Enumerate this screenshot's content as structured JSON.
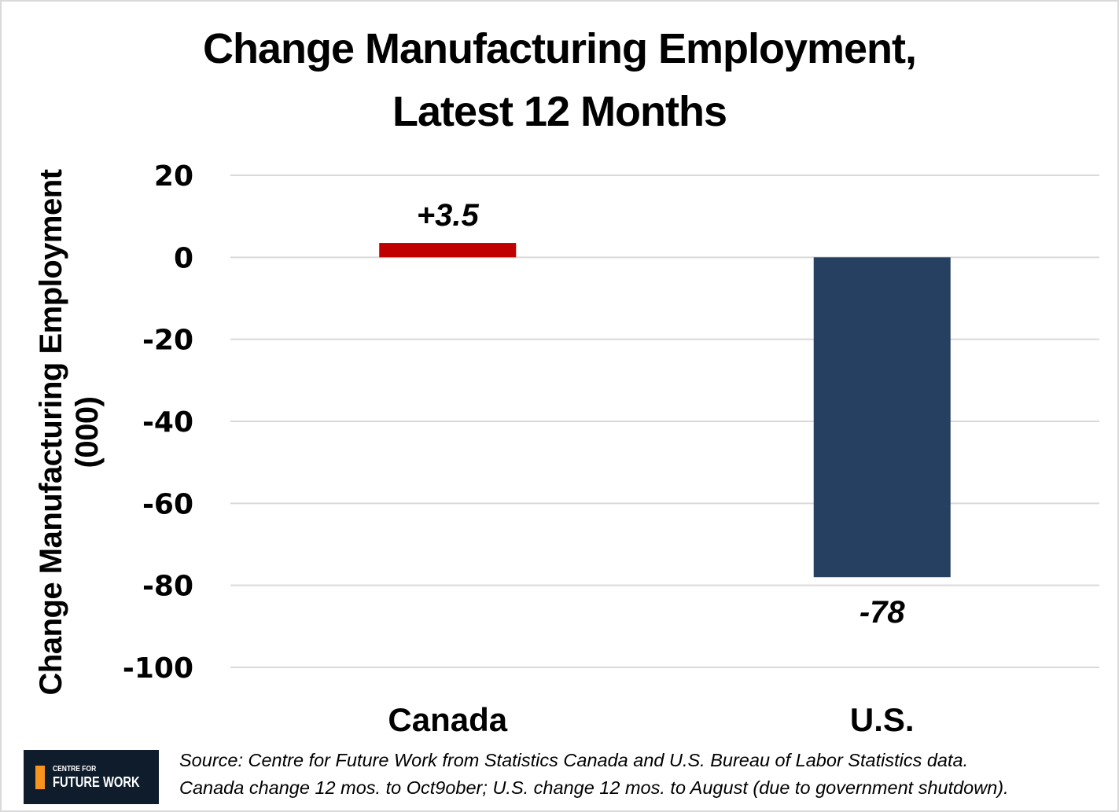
{
  "chart_data": {
    "type": "bar",
    "title": "Change Manufacturing Employment, Latest 12 Months",
    "title_lines": [
      "Change Manufacturing Employment,",
      "Latest 12 Months"
    ],
    "xlabel": "",
    "ylabel": "Change Manufacturing Employment (000)",
    "ylabel_lines": [
      "Change Manufacturing Employment",
      "(000)"
    ],
    "categories": [
      "Canada",
      "U.S."
    ],
    "values": [
      3.5,
      -78
    ],
    "data_labels": [
      "+3.5",
      "-78"
    ],
    "colors": [
      "#c00000",
      "#264061"
    ],
    "ylim": [
      -100,
      20
    ],
    "yticks": [
      20,
      0,
      -20,
      -40,
      -60,
      -80,
      -100
    ],
    "ytick_labels": [
      "20",
      "0",
      "-20",
      "-40",
      "-60",
      "-80",
      "-100"
    ],
    "grid": true,
    "grid_color": "#d9d9d9",
    "legend": "none"
  },
  "footer": {
    "logo": {
      "line1": "CENTRE FOR",
      "line2": "FUTURE WORK",
      "icon": "centre-for-future-work-logo-icon",
      "accent_color": "#f7941d",
      "background_color": "#0e1c2c"
    },
    "source_lines": [
      "Source: Centre for Future Work from Statistics Canada and U.S. Bureau of Labor Statistics data.",
      "Canada change 12 mos. to Oct9ober; U.S. change 12 mos. to August (due to government shutdown)."
    ]
  }
}
